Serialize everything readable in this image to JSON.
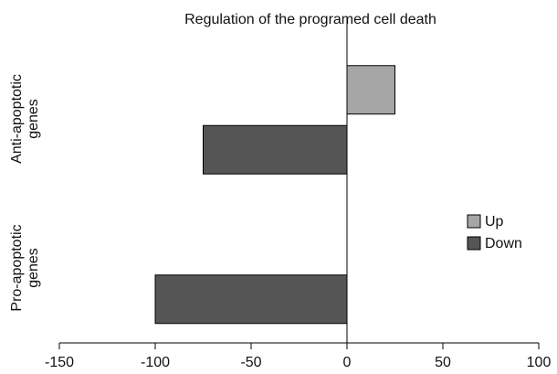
{
  "chart_data": {
    "type": "barh",
    "title": "Regulation of the programed cell death",
    "categories": [
      "Anti-apoptotic genes",
      "Pro-apoptotic genes"
    ],
    "series": [
      {
        "name": "Up",
        "color": "#a6a6a6",
        "values": [
          25,
          null
        ]
      },
      {
        "name": "Down",
        "color": "#555555",
        "values": [
          -75,
          -100
        ]
      }
    ],
    "xlim": [
      -150,
      100
    ],
    "xticks": [
      -150,
      -100,
      -50,
      0,
      50,
      100
    ],
    "legend": "right"
  }
}
